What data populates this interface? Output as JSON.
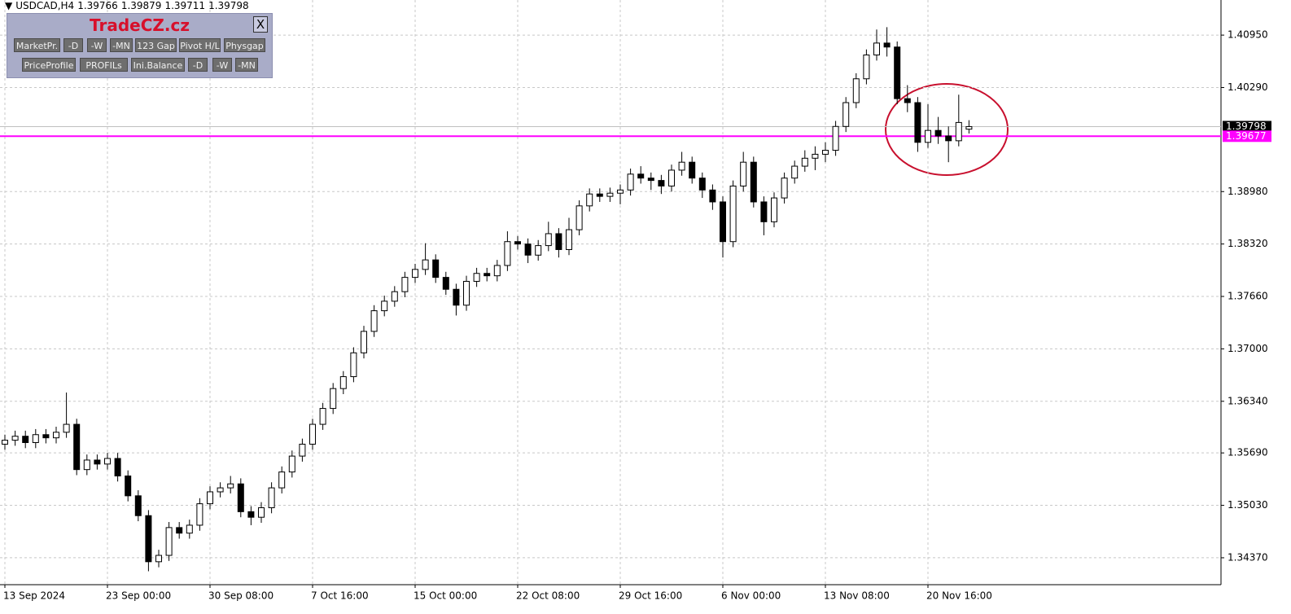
{
  "chart_data": {
    "type": "candlestick",
    "title": "USDCAD,H4",
    "header_values": [
      1.39766,
      1.39879,
      1.39711,
      1.39798
    ],
    "categories": [
      "13 Sep 2024",
      null,
      null,
      null,
      null,
      null,
      null,
      null,
      null,
      null,
      "23 Sep 00:00",
      null,
      null,
      null,
      null,
      null,
      null,
      null,
      null,
      null,
      "30 Sep 08:00",
      null,
      null,
      null,
      null,
      null,
      null,
      null,
      null,
      null,
      "7 Oct 16:00",
      null,
      null,
      null,
      null,
      null,
      null,
      null,
      null,
      null,
      "15 Oct 00:00",
      null,
      null,
      null,
      null,
      null,
      null,
      null,
      null,
      null,
      "22 Oct 08:00",
      null,
      null,
      null,
      null,
      null,
      null,
      null,
      null,
      null,
      "29 Oct 16:00",
      null,
      null,
      null,
      null,
      null,
      null,
      null,
      null,
      null,
      "6 Nov 00:00",
      null,
      null,
      null,
      null,
      null,
      null,
      null,
      null,
      null,
      "13 Nov 08:00",
      null,
      null,
      null,
      null,
      null,
      null,
      null,
      null,
      null,
      "20 Nov 16:00",
      null,
      null,
      null,
      null
    ],
    "open": [
      1.358,
      1.3585,
      1.359,
      1.3582,
      1.3592,
      1.3588,
      1.3595,
      1.3605,
      1.3548,
      1.356,
      1.3555,
      1.3562,
      1.354,
      1.3515,
      1.349,
      1.3432,
      1.344,
      1.3475,
      1.3468,
      1.3478,
      1.3505,
      1.352,
      1.3525,
      1.353,
      1.3495,
      1.3488,
      1.35,
      1.3525,
      1.3545,
      1.3565,
      1.358,
      1.3605,
      1.3625,
      1.365,
      1.3665,
      1.3695,
      1.3722,
      1.3748,
      1.376,
      1.3772,
      1.379,
      1.38,
      1.3812,
      1.379,
      1.3775,
      1.3755,
      1.3785,
      1.3795,
      1.3792,
      1.3805,
      1.3835,
      1.3832,
      1.3818,
      1.383,
      1.3845,
      1.3825,
      1.385,
      1.388,
      1.3895,
      1.3892,
      1.3896,
      1.39,
      1.392,
      1.3915,
      1.3912,
      1.3905,
      1.3925,
      1.3935,
      1.3915,
      1.39,
      1.3885,
      1.3835,
      1.3905,
      1.3935,
      1.3885,
      1.386,
      1.389,
      1.3915,
      1.393,
      1.394,
      1.3945,
      1.395,
      1.398,
      1.401,
      1.404,
      1.407,
      1.4085,
      1.408,
      1.4015,
      1.401,
      1.396,
      1.3975,
      1.3968,
      1.3962,
      1.39766
    ],
    "high": [
      1.3592,
      1.3597,
      1.3597,
      1.3599,
      1.3599,
      1.3602,
      1.3645,
      1.3612,
      1.3567,
      1.3567,
      1.3569,
      1.3569,
      1.3547,
      1.3522,
      1.3497,
      1.3447,
      1.3482,
      1.3482,
      1.3485,
      1.3512,
      1.3527,
      1.3532,
      1.354,
      1.3537,
      1.3502,
      1.3507,
      1.3532,
      1.3552,
      1.3572,
      1.3587,
      1.3612,
      1.3632,
      1.3657,
      1.3672,
      1.3702,
      1.3729,
      1.3755,
      1.3767,
      1.3779,
      1.3797,
      1.3807,
      1.3833,
      1.3819,
      1.3797,
      1.3782,
      1.3792,
      1.3802,
      1.3802,
      1.3812,
      1.3848,
      1.3842,
      1.3839,
      1.3837,
      1.386,
      1.3852,
      1.3865,
      1.3887,
      1.3902,
      1.3902,
      1.3903,
      1.3907,
      1.3927,
      1.393,
      1.3922,
      1.3919,
      1.3932,
      1.3948,
      1.3942,
      1.3922,
      1.3907,
      1.3892,
      1.3912,
      1.3948,
      1.3942,
      1.3892,
      1.3897,
      1.3922,
      1.3937,
      1.395,
      1.3955,
      1.396,
      1.3987,
      1.4017,
      1.4047,
      1.4077,
      1.4102,
      1.4105,
      1.4087,
      1.4032,
      1.4017,
      1.4008,
      1.3992,
      1.398,
      1.402,
      1.39879
    ],
    "low": [
      1.3573,
      1.3578,
      1.3575,
      1.3575,
      1.3581,
      1.3581,
      1.3588,
      1.3541,
      1.3541,
      1.3548,
      1.3548,
      1.3533,
      1.3508,
      1.3483,
      1.342,
      1.3425,
      1.3433,
      1.3461,
      1.3461,
      1.3471,
      1.3498,
      1.3513,
      1.3518,
      1.3488,
      1.3478,
      1.3481,
      1.3493,
      1.3518,
      1.3538,
      1.3558,
      1.3573,
      1.3598,
      1.3618,
      1.3643,
      1.3658,
      1.3688,
      1.3715,
      1.3741,
      1.3753,
      1.3765,
      1.3783,
      1.3793,
      1.3783,
      1.3768,
      1.3742,
      1.3748,
      1.3778,
      1.3785,
      1.3785,
      1.3798,
      1.3825,
      1.3808,
      1.3811,
      1.3823,
      1.3815,
      1.3818,
      1.3843,
      1.3873,
      1.3885,
      1.3885,
      1.3882,
      1.3893,
      1.3908,
      1.39,
      1.3895,
      1.3898,
      1.3918,
      1.3908,
      1.389,
      1.3875,
      1.3815,
      1.3828,
      1.3898,
      1.3878,
      1.3843,
      1.3853,
      1.3883,
      1.3908,
      1.3923,
      1.3925,
      1.3935,
      1.3943,
      1.3973,
      1.4003,
      1.4033,
      1.4063,
      1.4068,
      1.4008,
      1.3998,
      1.3948,
      1.3953,
      1.3958,
      1.3935,
      1.3955,
      1.39711
    ],
    "close": [
      1.3585,
      1.359,
      1.3582,
      1.3592,
      1.3588,
      1.3595,
      1.3605,
      1.3548,
      1.356,
      1.3555,
      1.3562,
      1.354,
      1.3515,
      1.349,
      1.3432,
      1.344,
      1.3475,
      1.3468,
      1.3478,
      1.3505,
      1.352,
      1.3525,
      1.353,
      1.3495,
      1.3488,
      1.35,
      1.3525,
      1.3545,
      1.3565,
      1.358,
      1.3605,
      1.3625,
      1.365,
      1.3665,
      1.3695,
      1.3722,
      1.3748,
      1.376,
      1.3772,
      1.379,
      1.38,
      1.3812,
      1.379,
      1.3775,
      1.3755,
      1.3785,
      1.3795,
      1.3792,
      1.3805,
      1.3835,
      1.3832,
      1.3818,
      1.383,
      1.3845,
      1.3825,
      1.385,
      1.388,
      1.3895,
      1.3892,
      1.3896,
      1.39,
      1.392,
      1.3915,
      1.3912,
      1.3905,
      1.3925,
      1.3935,
      1.3915,
      1.39,
      1.3885,
      1.3835,
      1.3905,
      1.3935,
      1.3885,
      1.386,
      1.389,
      1.3915,
      1.393,
      1.394,
      1.3945,
      1.395,
      1.398,
      1.401,
      1.404,
      1.407,
      1.4085,
      1.408,
      1.4015,
      1.401,
      1.396,
      1.3975,
      1.3968,
      1.3962,
      1.3985,
      1.39798
    ],
    "up_color": "#ffffff",
    "down_color": "#000000",
    "wick_color": "#000000",
    "ylim": [
      1.34031,
      1.41392
    ],
    "yticks": [
      {
        "value": 1.4095,
        "label": "1.40950"
      },
      {
        "value": 1.4029,
        "label": "1.40290"
      },
      {
        "value": 1.3898,
        "label": "1.38980"
      },
      {
        "value": 1.3832,
        "label": "1.38320"
      },
      {
        "value": 1.3766,
        "label": "1.37660"
      },
      {
        "value": 1.37,
        "label": "1.37000"
      },
      {
        "value": 1.3634,
        "label": "1.36340"
      },
      {
        "value": 1.3569,
        "label": "1.35690"
      },
      {
        "value": 1.3503,
        "label": "1.35030"
      },
      {
        "value": 1.3437,
        "label": "1.34370"
      }
    ],
    "grid": true,
    "price_lines": [
      {
        "value": 1.39798,
        "label": "1.39798",
        "color": "#c0c0c0",
        "label_bg": "#000000"
      },
      {
        "value": 1.39677,
        "label": "1.39677",
        "color": "#ff00ff",
        "label_bg": "#ff00ff"
      }
    ]
  },
  "panel": {
    "title": "TradeCZ.cz",
    "close": "X",
    "rows": [
      [
        "MarketPr.",
        "-D",
        "-W",
        "-MN",
        "123 Gap",
        "Pivot H/L",
        "Physgap"
      ],
      [
        "PriceProfile",
        "PROFILs",
        "Ini.Balance",
        "-D",
        "-W",
        "-MN"
      ]
    ]
  }
}
